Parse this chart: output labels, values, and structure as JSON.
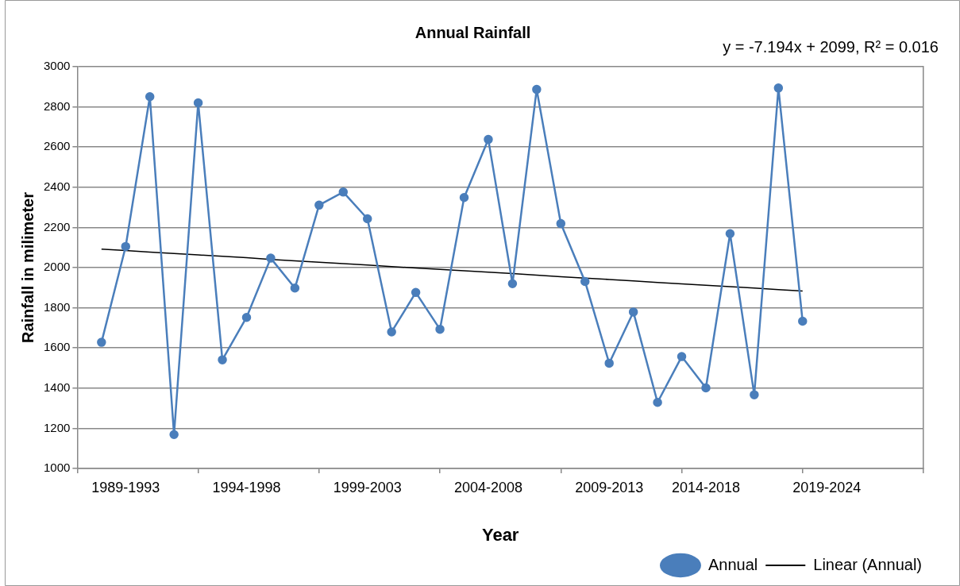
{
  "chart_data": {
    "type": "line",
    "title": "Annual Rainfall",
    "xlabel": "Year",
    "ylabel": "Rainfall in milimeter",
    "annotations": [
      "y = -7.194x + 2099, R² = 0.016"
    ],
    "categories": [
      null,
      null,
      "1989-1993",
      null,
      null,
      null,
      null,
      "1994-1998",
      null,
      null,
      null,
      null,
      "1999-2003",
      null,
      null,
      null,
      null,
      "2004-2008",
      null,
      null,
      null,
      null,
      "2009-2013",
      null,
      null,
      null,
      "2014-2018",
      null,
      null,
      null,
      null,
      "2019-2024",
      null,
      null,
      null,
      null
    ],
    "series": [
      {
        "name": "Annual",
        "color": "#4a7ebb",
        "marker": "circle",
        "values": [
          null,
          1628,
          2105,
          2851,
          1169,
          2820,
          1541,
          1752,
          2047,
          1898,
          2311,
          2376,
          2243,
          1680,
          1876,
          1693,
          2349,
          2638,
          1920,
          2887,
          2219,
          1931,
          1524,
          1779,
          1329,
          1557,
          1401,
          2169,
          1367,
          2894,
          1733,
          null,
          null,
          null,
          null,
          null
        ]
      },
      {
        "name": "Linear (Annual)",
        "color": "#000000",
        "marker": "none",
        "values": [
          null,
          2092,
          2085,
          2077,
          2070,
          2063,
          2056,
          2049,
          2041,
          2034,
          2027,
          2020,
          2013,
          2005,
          1998,
          1991,
          1984,
          1977,
          1970,
          1962,
          1955,
          1948,
          1941,
          1934,
          1926,
          1919,
          1912,
          1905,
          1898,
          1890,
          1883,
          null,
          null,
          null,
          null,
          null
        ]
      }
    ],
    "ylim": [
      1000,
      3000
    ],
    "yticks": [
      1000,
      1200,
      1400,
      1600,
      1800,
      2000,
      2200,
      2400,
      2600,
      2800,
      3000
    ],
    "grid": "y",
    "legend": "bottom right"
  }
}
